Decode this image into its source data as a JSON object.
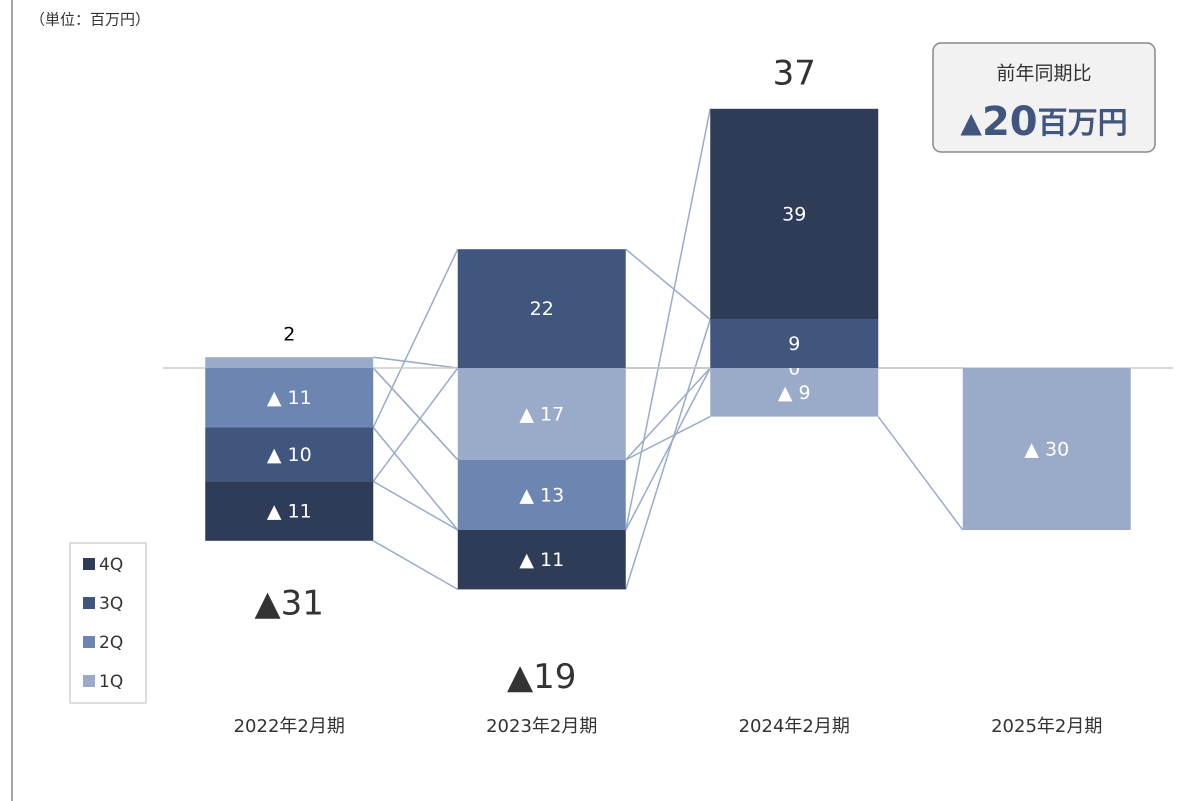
{
  "chart_data": {
    "type": "bar",
    "stacked": true,
    "unit_note": "（単位：百万円）",
    "categories": [
      "2022年2月期",
      "2023年2月期",
      "2024年2月期",
      "2025年2月期"
    ],
    "series": [
      {
        "name": "1Q",
        "color": "#9aabc9",
        "values": [
          2,
          -17,
          -9,
          -30
        ],
        "value_labels": [
          "2",
          "▲ 17",
          "▲ 9",
          "▲ 30"
        ]
      },
      {
        "name": "2Q",
        "color": "#6d86b1",
        "values": [
          -11,
          -13,
          0,
          null
        ],
        "value_labels": [
          "▲ 11",
          "▲ 13",
          "0",
          null
        ]
      },
      {
        "name": "3Q",
        "color": "#41567e",
        "values": [
          -10,
          22,
          9,
          null
        ],
        "value_labels": [
          "▲ 10",
          "22",
          "9",
          null
        ]
      },
      {
        "name": "4Q",
        "color": "#2e3c58",
        "values": [
          -11,
          -11,
          39,
          null
        ],
        "value_labels": [
          "▲ 11",
          "▲ 11",
          "39",
          null
        ]
      }
    ],
    "totals": {
      "values": [
        -31,
        -19,
        37,
        null
      ],
      "value_labels": [
        "▲31",
        "▲19",
        "37",
        null
      ]
    },
    "ylim": [
      -60,
      60
    ],
    "callout": {
      "title": "前年同期比",
      "mark": "▲",
      "value": "20",
      "unit": "百万円"
    }
  }
}
